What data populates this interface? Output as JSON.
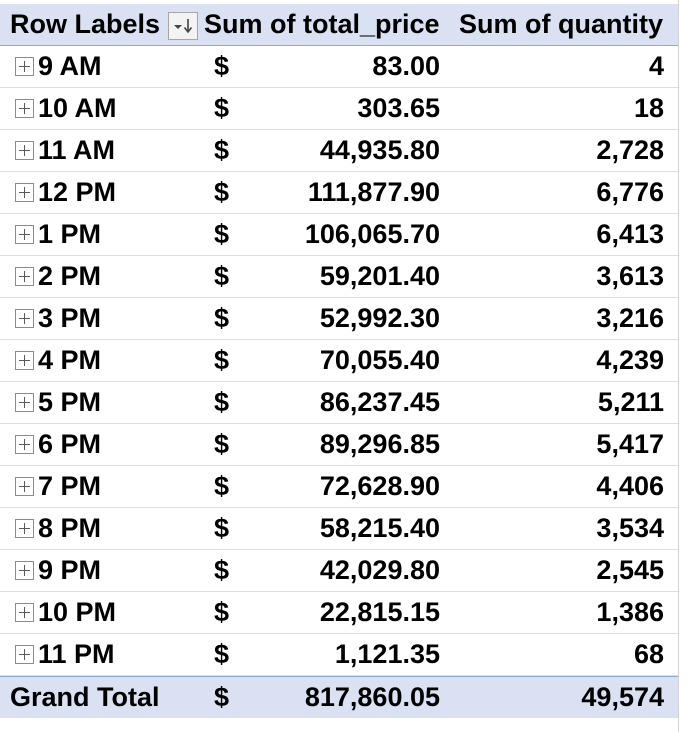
{
  "pivot": {
    "headers": {
      "row_labels": "Row Labels",
      "sum_total_price": "Sum of total_price",
      "sum_quantity": "Sum of quantity"
    },
    "filter_icon": "sort-filter-dropdown-icon",
    "currency_symbol": "$",
    "rows": [
      {
        "label": "9 AM",
        "total_price": "83.00",
        "quantity": "4"
      },
      {
        "label": "10 AM",
        "total_price": "303.65",
        "quantity": "18"
      },
      {
        "label": "11 AM",
        "total_price": "44,935.80",
        "quantity": "2,728"
      },
      {
        "label": "12 PM",
        "total_price": "111,877.90",
        "quantity": "6,776"
      },
      {
        "label": "1 PM",
        "total_price": "106,065.70",
        "quantity": "6,413"
      },
      {
        "label": "2 PM",
        "total_price": "59,201.40",
        "quantity": "3,613"
      },
      {
        "label": "3 PM",
        "total_price": "52,992.30",
        "quantity": "3,216"
      },
      {
        "label": "4 PM",
        "total_price": "70,055.40",
        "quantity": "4,239"
      },
      {
        "label": "5 PM",
        "total_price": "86,237.45",
        "quantity": "5,211"
      },
      {
        "label": "6 PM",
        "total_price": "89,296.85",
        "quantity": "5,417"
      },
      {
        "label": "7 PM",
        "total_price": "72,628.90",
        "quantity": "4,406"
      },
      {
        "label": "8 PM",
        "total_price": "58,215.40",
        "quantity": "3,534"
      },
      {
        "label": "9 PM",
        "total_price": "42,029.80",
        "quantity": "2,545"
      },
      {
        "label": "10 PM",
        "total_price": "22,815.15",
        "quantity": "1,386"
      },
      {
        "label": "11 PM",
        "total_price": "1,121.35",
        "quantity": "68"
      }
    ],
    "grand_total": {
      "label": "Grand Total",
      "total_price": "817,860.05",
      "quantity": "49,574"
    },
    "colors": {
      "header_fill": "#d9e1f2",
      "header_border": "#8ea9db",
      "row_border": "#d9dee9"
    }
  }
}
